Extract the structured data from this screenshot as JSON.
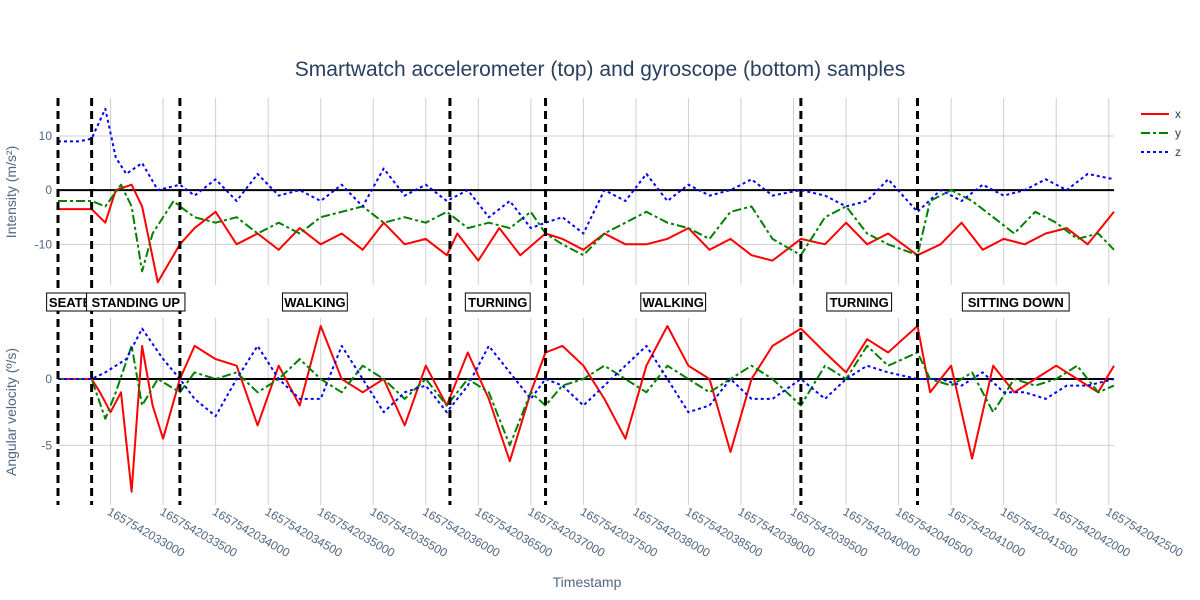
{
  "chart_data": {
    "type": "line",
    "title": "Smartwatch accelerometer (top) and gyroscope (bottom) samples",
    "xlabel": "Timestamp",
    "xlim": [
      1657542032500,
      1657542042550
    ],
    "x_ticks": [
      1657542033000,
      1657542033500,
      1657542034000,
      1657542034500,
      1657542035000,
      1657542035500,
      1657542036000,
      1657542036500,
      1657542037000,
      1657542037500,
      1657542038000,
      1657542038500,
      1657542039000,
      1657542039500,
      1657542040000,
      1657542040500,
      1657542041000,
      1657542041500,
      1657542042000,
      1657542042500
    ],
    "x_tick_labels": [
      "1657542033000",
      "1657542033500",
      "1657542034000",
      "1657542034500",
      "1657542035000",
      "1657542035500",
      "1657542036000",
      "1657542036500",
      "1657542037000",
      "1657542037500",
      "1657542038000",
      "1657542038500",
      "1657542039000",
      "1657542039500",
      "1657542040000",
      "1657542040500",
      "1657542041000",
      "1657542041500",
      "1657542042000",
      "1657542042500"
    ],
    "legend": {
      "position": "top-right",
      "entries": [
        "x",
        "y",
        "z"
      ]
    },
    "colors": {
      "x": "#ff0000",
      "y": "#008000",
      "z": "#0000ff"
    },
    "segment_boundaries": [
      1657542032500,
      1657542032820,
      1657542033660,
      1657542036230,
      1657542037140,
      1657542039570,
      1657542040680
    ],
    "segments": [
      {
        "label": "SEATED",
        "start": 1657542032500,
        "end": 1657542032820
      },
      {
        "label": "STANDING UP",
        "start": 1657542032820,
        "end": 1657542033660
      },
      {
        "label": "WALKING",
        "start": 1657542033660,
        "end": 1657542036230
      },
      {
        "label": "TURNING",
        "start": 1657542036230,
        "end": 1657542037140
      },
      {
        "label": "WALKING",
        "start": 1657542037140,
        "end": 1657542039570
      },
      {
        "label": "TURNING",
        "start": 1657542039570,
        "end": 1657542040680
      },
      {
        "label": "SITTING DOWN",
        "start": 1657542040680,
        "end": 1657542042550
      }
    ],
    "panels": [
      {
        "ylabel": "Intensity (m/s²)",
        "ylim": [
          -17.5,
          17
        ],
        "y_ticks": [
          -10,
          0,
          10
        ],
        "series": [
          {
            "name": "x",
            "x": [
              1657542032500,
              1657542032820,
              1657542032950,
              1657542033050,
              1657542033200,
              1657542033300,
              1657542033450,
              1657542033660,
              1657542033800,
              1657542034000,
              1657542034200,
              1657542034400,
              1657542034600,
              1657542034800,
              1657542035000,
              1657542035200,
              1657542035400,
              1657542035600,
              1657542035800,
              1657542036000,
              1657542036200,
              1657542036300,
              1657542036500,
              1657542036700,
              1657542036900,
              1657542037140,
              1657542037300,
              1657542037500,
              1657542037700,
              1657542037900,
              1657542038100,
              1657542038300,
              1657542038500,
              1657542038700,
              1657542038900,
              1657542039100,
              1657542039300,
              1657542039570,
              1657542039800,
              1657542040000,
              1657542040200,
              1657542040400,
              1657542040680,
              1657542040900,
              1657542041100,
              1657542041300,
              1657542041500,
              1657542041700,
              1657542041900,
              1657542042100,
              1657542042300,
              1657542042550
            ],
            "values": [
              -3.5,
              -3.5,
              -6,
              0,
              1,
              -3,
              -17,
              -10,
              -7,
              -4,
              -10,
              -8,
              -11,
              -7,
              -10,
              -8,
              -11,
              -6,
              -10,
              -9,
              -12,
              -8,
              -13,
              -7,
              -12,
              -8,
              -9,
              -11,
              -8,
              -10,
              -10,
              -9,
              -7,
              -11,
              -9,
              -12,
              -13,
              -9,
              -10,
              -6,
              -10,
              -8,
              -12,
              -10,
              -6,
              -11,
              -9,
              -10,
              -8,
              -7,
              -10,
              -4
            ]
          },
          {
            "name": "y",
            "x": [
              1657542032500,
              1657542032820,
              1657542032950,
              1657542033100,
              1657542033200,
              1657542033300,
              1657542033400,
              1657542033600,
              1657542033660,
              1657542033800,
              1657542034000,
              1657542034200,
              1657542034400,
              1657542034600,
              1657542034800,
              1657542035000,
              1657542035200,
              1657542035400,
              1657542035600,
              1657542035800,
              1657542036000,
              1657542036200,
              1657542036400,
              1657542036600,
              1657542036800,
              1657542037000,
              1657542037140,
              1657542037300,
              1657542037500,
              1657542037700,
              1657542037900,
              1657542038100,
              1657542038300,
              1657542038500,
              1657542038700,
              1657542038900,
              1657542039100,
              1657542039300,
              1657542039570,
              1657542039800,
              1657542040000,
              1657542040200,
              1657542040400,
              1657542040680,
              1657542040800,
              1657542041000,
              1657542041200,
              1657542041400,
              1657542041600,
              1657542041800,
              1657542042000,
              1657542042200,
              1657542042400,
              1657542042550
            ],
            "values": [
              -2,
              -2,
              -3,
              1,
              -3,
              -15,
              -8,
              -2,
              -3,
              -5,
              -6,
              -5,
              -8,
              -6,
              -8,
              -5,
              -4,
              -3,
              -6,
              -5,
              -6,
              -4,
              -7,
              -6,
              -7,
              -4,
              -8,
              -10,
              -12,
              -8,
              -6,
              -4,
              -6,
              -7,
              -9,
              -4,
              -3,
              -9,
              -12,
              -5,
              -3,
              -8,
              -10,
              -12,
              -2,
              0,
              -2,
              -5,
              -8,
              -4,
              -6,
              -9,
              -8,
              -11
            ]
          },
          {
            "name": "z",
            "x": [
              1657542032500,
              1657542032700,
              1657542032820,
              1657542032950,
              1657542033050,
              1657542033150,
              1657542033300,
              1657542033450,
              1657542033660,
              1657542033800,
              1657542034000,
              1657542034200,
              1657542034400,
              1657542034600,
              1657542034800,
              1657542035000,
              1657542035200,
              1657542035400,
              1657542035600,
              1657542035800,
              1657542036000,
              1657542036200,
              1657542036400,
              1657542036600,
              1657542036800,
              1657542037000,
              1657542037140,
              1657542037300,
              1657542037500,
              1657542037700,
              1657542037900,
              1657542038100,
              1657542038300,
              1657542038500,
              1657542038700,
              1657542038900,
              1657542039100,
              1657542039300,
              1657542039570,
              1657542039800,
              1657542040000,
              1657542040200,
              1657542040400,
              1657542040680,
              1657542040900,
              1657542041100,
              1657542041300,
              1657542041500,
              1657542041700,
              1657542041900,
              1657542042100,
              1657542042300,
              1657542042550
            ],
            "values": [
              9,
              9,
              9.5,
              15,
              6,
              3,
              5,
              0,
              1,
              -1,
              2,
              -2,
              3,
              -1,
              0,
              -2,
              1,
              -3,
              4,
              -1,
              1,
              -2,
              0,
              -5,
              -2,
              -7,
              -6,
              -5,
              -8,
              0,
              -2,
              3,
              -2,
              1,
              -1,
              0,
              2,
              -1,
              0,
              -1,
              -3,
              -2,
              2,
              -4,
              0,
              -2,
              1,
              -1,
              0,
              2,
              0,
              3,
              2
            ]
          }
        ]
      },
      {
        "ylabel": "Angular velocity (º/s)",
        "ylim": [
          -9.5,
          4.6
        ],
        "y_ticks": [
          -5,
          0
        ],
        "series": [
          {
            "name": "x",
            "x": [
              1657542032500,
              1657542032820,
              1657542032900,
              1657542033000,
              1657542033100,
              1657542033200,
              1657542033300,
              1657542033400,
              1657542033500,
              1657542033660,
              1657542033800,
              1657542034000,
              1657542034200,
              1657542034400,
              1657542034600,
              1657542034800,
              1657542035000,
              1657542035200,
              1657542035400,
              1657542035600,
              1657542035800,
              1657542036000,
              1657542036200,
              1657542036400,
              1657542036600,
              1657542036800,
              1657542037000,
              1657542037140,
              1657542037300,
              1657542037500,
              1657542037700,
              1657542037900,
              1657542038100,
              1657542038300,
              1657542038500,
              1657542038700,
              1657542038900,
              1657542039100,
              1657542039300,
              1657542039570,
              1657542039800,
              1657542040000,
              1657542040200,
              1657542040400,
              1657542040680,
              1657542040800,
              1657542041000,
              1657542041200,
              1657542041400,
              1657542041600,
              1657542041800,
              1657542042000,
              1657542042200,
              1657542042400,
              1657542042550
            ],
            "values": [
              0,
              0,
              -1,
              -2.5,
              -1,
              -8.5,
              2.5,
              -2,
              -4.5,
              0,
              2.5,
              1.5,
              1,
              -3.5,
              1,
              -2,
              4,
              0,
              -1,
              0,
              -3.5,
              1,
              -2,
              2,
              -1.5,
              -6.2,
              -1,
              2,
              2.5,
              1,
              -1.5,
              -4.5,
              1,
              4,
              1,
              0,
              -5.5,
              0,
              2.5,
              3.8,
              2,
              0.5,
              3,
              2,
              4,
              -1,
              1,
              -6,
              1,
              -1,
              0,
              1,
              0,
              -1,
              1
            ]
          },
          {
            "name": "y",
            "x": [
              1657542032500,
              1657542032820,
              1657542032950,
              1657542033050,
              1657542033200,
              1657542033300,
              1657542033450,
              1657542033660,
              1657542033800,
              1657542034000,
              1657542034200,
              1657542034400,
              1657542034600,
              1657542034800,
              1657542035000,
              1657542035200,
              1657542035400,
              1657542035600,
              1657542035800,
              1657542036000,
              1657542036200,
              1657542036400,
              1657542036600,
              1657542036800,
              1657542037000,
              1657542037140,
              1657542037300,
              1657542037500,
              1657542037700,
              1657542037900,
              1657542038100,
              1657542038300,
              1657542038500,
              1657542038700,
              1657542038900,
              1657542039100,
              1657542039300,
              1657542039570,
              1657542039800,
              1657542040000,
              1657542040200,
              1657542040400,
              1657542040680,
              1657542040800,
              1657542041000,
              1657542041200,
              1657542041400,
              1657542041600,
              1657542041800,
              1657542042000,
              1657542042200,
              1657542042400,
              1657542042550
            ],
            "values": [
              0,
              0,
              -3,
              -1,
              2.5,
              -2,
              0,
              -1,
              0.5,
              0,
              0.5,
              -1,
              0,
              1.5,
              0,
              -1,
              1,
              0,
              -1.5,
              0,
              -2,
              0,
              -1,
              -5,
              -1,
              -2,
              -0.5,
              0,
              1,
              0,
              -1,
              1,
              0,
              -1,
              0,
              1,
              0,
              -2,
              1,
              0,
              2.5,
              1,
              2,
              0,
              -0.5,
              0.5,
              -2.5,
              0,
              -0.5,
              0,
              1,
              -1,
              -0.5
            ]
          },
          {
            "name": "z",
            "x": [
              1657542032500,
              1657542032820,
              1657542032950,
              1657542033150,
              1657542033300,
              1657542033500,
              1657542033660,
              1657542033800,
              1657542034000,
              1657542034200,
              1657542034400,
              1657542034600,
              1657542034800,
              1657542035000,
              1657542035200,
              1657542035400,
              1657542035600,
              1657542035800,
              1657542036000,
              1657542036200,
              1657542036400,
              1657542036600,
              1657542036800,
              1657542037000,
              1657542037140,
              1657542037300,
              1657542037500,
              1657542037700,
              1657542037900,
              1657542038100,
              1657542038300,
              1657542038500,
              1657542038700,
              1657542038900,
              1657542039100,
              1657542039300,
              1657542039570,
              1657542039800,
              1657542040000,
              1657542040200,
              1657542040400,
              1657542040680,
              1657542040900,
              1657542041100,
              1657542041300,
              1657542041500,
              1657542041700,
              1657542041900,
              1657542042100,
              1657542042300,
              1657542042550
            ],
            "values": [
              0,
              0,
              0.5,
              1.5,
              3.8,
              1.5,
              0,
              -1.5,
              -2.8,
              0,
              2.5,
              0,
              -1.5,
              -1.5,
              2.5,
              0,
              -2.5,
              -1,
              -0.5,
              -2.5,
              -0.5,
              2.5,
              0.5,
              -1.5,
              0,
              -0.5,
              -2,
              -0.5,
              1,
              2.5,
              0,
              -2.5,
              -2,
              0,
              -1.5,
              -1.5,
              0,
              -1.5,
              0,
              1,
              0.5,
              0,
              0,
              -0.5,
              0.5,
              -1,
              -1,
              -1.5,
              -0.5,
              -0.5,
              0
            ]
          }
        ]
      }
    ]
  }
}
